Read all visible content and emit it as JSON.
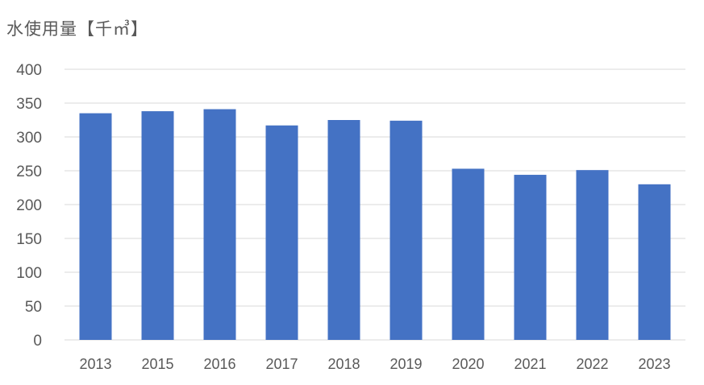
{
  "chart_data": {
    "type": "bar",
    "title": "水使用量【千㎥】",
    "xlabel": "",
    "ylabel": "",
    "categories": [
      "2013",
      "2015",
      "2016",
      "2017",
      "2018",
      "2019",
      "2020",
      "2021",
      "2022",
      "2023"
    ],
    "values": [
      335,
      338,
      341,
      317,
      325,
      324,
      253,
      244,
      251,
      230
    ],
    "ylim": [
      0,
      400
    ],
    "yticks": [
      "0",
      "50",
      "100",
      "150",
      "200",
      "250",
      "300",
      "350",
      "400"
    ],
    "grid": true,
    "legend": "none",
    "bar_color": "#4472C4",
    "grid_color": "#D9D9D9",
    "text_color": "#595959"
  }
}
